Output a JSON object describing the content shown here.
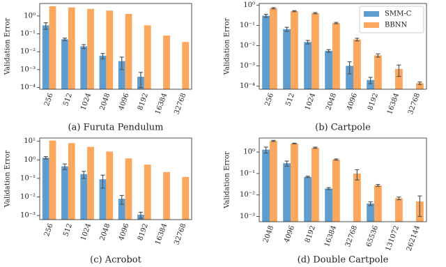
{
  "chart_data": [
    {
      "type": "bar",
      "caption": "(a) Furuta Pendulum",
      "ylabel": "Validation Error",
      "yscale": "log",
      "categories": [
        "256",
        "512",
        "1024",
        "2048",
        "4096",
        "8192",
        "16384",
        "32768"
      ],
      "series": [
        {
          "color": "#5f9dcf",
          "values": [
            0.3,
            0.05,
            0.02,
            0.006,
            0.003,
            0.0004,
            null,
            null
          ],
          "errors": [
            0.12,
            0.008,
            0.005,
            0.002,
            0.002,
            0.0003,
            null,
            null
          ]
        },
        {
          "color": "#fba85e",
          "values": [
            3.5,
            3,
            2.5,
            2,
            1.3,
            0.3,
            0.08,
            0.035
          ]
        }
      ],
      "ylim": [
        8e-05,
        5
      ],
      "yticks": [
        {
          "value": 1,
          "label": "10⁰"
        },
        {
          "value": 0.1,
          "label": "10⁻¹"
        },
        {
          "value": 0.01,
          "label": "10⁻²"
        },
        {
          "value": 0.001,
          "label": "10⁻³"
        },
        {
          "value": 0.0001,
          "label": "10⁻⁴"
        }
      ]
    },
    {
      "type": "bar",
      "caption": "(b) Cartpole",
      "ylabel": "Validation Error",
      "yscale": "log",
      "legend": "upper right",
      "categories": [
        "256",
        "512",
        "1024",
        "2048",
        "4096",
        "8192",
        "16384",
        "32768"
      ],
      "series": [
        {
          "name": "SMM-C",
          "color": "#5f9dcf",
          "values": [
            0.3,
            0.065,
            0.015,
            0.0055,
            0.001,
            0.0002,
            null,
            null
          ],
          "errors": [
            0.05,
            0.015,
            0.003,
            0.0008,
            0.0006,
            7e-05,
            null,
            null
          ]
        },
        {
          "name": "BBNN",
          "color": "#fba85e",
          "values": [
            0.7,
            0.5,
            0.4,
            0.13,
            0.02,
            0.0033,
            0.0007,
            0.00014
          ],
          "errors": [
            0.05,
            0.03,
            0.03,
            0.01,
            0.003,
            0.0006,
            0.0004,
            2e-05
          ]
        }
      ],
      "ylim": [
        7e-05,
        1.2
      ],
      "yticks": [
        {
          "value": 1,
          "label": "10⁰"
        },
        {
          "value": 0.1,
          "label": "10⁻¹"
        },
        {
          "value": 0.01,
          "label": "10⁻²"
        },
        {
          "value": 0.001,
          "label": "10⁻³"
        },
        {
          "value": 0.0001,
          "label": "10⁻⁴"
        }
      ]
    },
    {
      "type": "bar",
      "caption": "(c) Acrobot",
      "ylabel": "Validation Error",
      "yscale": "log",
      "categories": [
        "256",
        "512",
        "1024",
        "2048",
        "4096",
        "8192",
        "16384",
        "32768"
      ],
      "series": [
        {
          "color": "#5f9dcf",
          "values": [
            1.3,
            0.45,
            0.17,
            0.09,
            0.008,
            0.0011,
            null,
            null
          ],
          "errors": [
            0.2,
            0.15,
            0.07,
            0.06,
            0.004,
            0.0004,
            null,
            null
          ]
        },
        {
          "color": "#fba85e",
          "values": [
            11,
            8,
            5,
            2.8,
            1.2,
            0.55,
            0.22,
            0.12
          ]
        }
      ],
      "ylim": [
        0.0006,
        15
      ],
      "yticks": [
        {
          "value": 10,
          "label": "10¹"
        },
        {
          "value": 1,
          "label": "10⁰"
        },
        {
          "value": 0.1,
          "label": "10⁻¹"
        },
        {
          "value": 0.01,
          "label": "10⁻²"
        },
        {
          "value": 0.001,
          "label": "10⁻³"
        }
      ]
    },
    {
      "type": "bar",
      "caption": "(d) Double Cartpole",
      "ylabel": "Validation Error",
      "yscale": "log",
      "categories": [
        "2048",
        "4096",
        "8192",
        "16384",
        "32768",
        "65536",
        "131072",
        "262144"
      ],
      "series": [
        {
          "color": "#5f9dcf",
          "values": [
            1.3,
            0.3,
            0.07,
            0.02,
            null,
            0.004,
            null,
            null
          ],
          "errors": [
            0.4,
            0.08,
            0.005,
            0.002,
            null,
            0.0008,
            null,
            null
          ]
        },
        {
          "color": "#fba85e",
          "values": [
            3.3,
            2.5,
            1.6,
            0.45,
            0.1,
            0.028,
            0.007,
            0.005
          ],
          "errors": [
            0.2,
            0.1,
            0.1,
            0.03,
            0.05,
            0.003,
            0.001,
            0.004
          ]
        }
      ],
      "ylim": [
        0.00057,
        4.5
      ],
      "yticks": [
        {
          "value": 1,
          "label": "10⁰"
        },
        {
          "value": 0.1,
          "label": "10⁻¹"
        },
        {
          "value": 0.01,
          "label": "10⁻²"
        },
        {
          "value": 0.001,
          "label": "10⁻³"
        }
      ]
    }
  ]
}
